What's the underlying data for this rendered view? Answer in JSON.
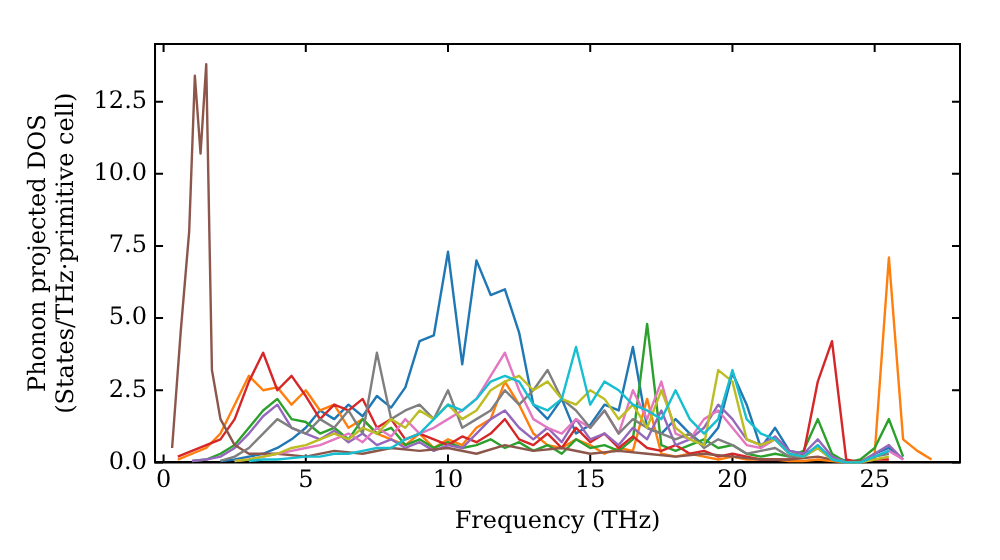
{
  "chart_data": {
    "type": "line",
    "xlabel": "Frequency (THz)",
    "ylabel": "Phonon projected DOS\n(States/THz·primitive cell)",
    "x": [
      0.5,
      1,
      1.5,
      2,
      2.5,
      3,
      3.5,
      4,
      4.5,
      5,
      5.5,
      6,
      6.5,
      7,
      7.5,
      8,
      8.5,
      9,
      9.5,
      10,
      10.5,
      11,
      11.5,
      12,
      12.5,
      13,
      13.5,
      14,
      14.5,
      15,
      15.5,
      16,
      16.5,
      17,
      17.5,
      18,
      18.5,
      19,
      19.5,
      20,
      20.5,
      21,
      21.5,
      22,
      22.5,
      23,
      23.5,
      24,
      24.5,
      25,
      25.5,
      26,
      26.5,
      27
    ],
    "xlim": [
      -0.3,
      28
    ],
    "xticks": [
      0,
      5,
      10,
      15,
      20,
      25
    ],
    "ylim": [
      0,
      14.5
    ],
    "yticks": [
      {
        "value": 0,
        "label": "0.0"
      },
      2.5,
      {
        "value": 5,
        "label": "5.0"
      },
      7.5,
      {
        "value": 10,
        "label": "10.0"
      },
      12.5
    ],
    "grid": false,
    "legend": false,
    "marker": "none",
    "line_style": "solid",
    "series": [
      {
        "color": "#1f77b4",
        "values": [
          null,
          null,
          null,
          0.05,
          0.1,
          0.2,
          0.3,
          0.5,
          0.8,
          1.2,
          1.8,
          1.5,
          2.0,
          1.6,
          2.3,
          1.9,
          2.6,
          4.2,
          4.4,
          7.3,
          3.4,
          7.0,
          5.8,
          6.0,
          4.5,
          2.0,
          1.5,
          2.2,
          1.0,
          1.3,
          2.0,
          1.8,
          4.0,
          1.2,
          1.0,
          1.5,
          1.0,
          0.6,
          1.2,
          3.1,
          2.0,
          0.5,
          1.2,
          0.4,
          0.3,
          0.5,
          0.2,
          0.05,
          0,
          0.3,
          0.5,
          0.1,
          null,
          null
        ]
      },
      {
        "color": "#ff7f0e",
        "values": [
          0.1,
          0.3,
          0.5,
          1.0,
          2.0,
          3.0,
          2.5,
          2.6,
          2.0,
          2.5,
          1.8,
          2.0,
          1.2,
          1.5,
          1.0,
          0.8,
          0.6,
          1.0,
          0.5,
          0.8,
          0.6,
          1.2,
          1.5,
          2.8,
          2.0,
          1.0,
          0.6,
          0.5,
          0.8,
          0.6,
          0.3,
          0.5,
          0.4,
          2.2,
          0.3,
          0.2,
          0.3,
          0.2,
          0.1,
          0.2,
          0.1,
          0.1,
          0.1,
          0.05,
          0.05,
          0.1,
          0.05,
          0,
          0,
          0.3,
          7.1,
          0.8,
          0.4,
          0.1
        ]
      },
      {
        "color": "#2ca02c",
        "values": [
          null,
          0.05,
          0.1,
          0.3,
          0.6,
          1.2,
          1.8,
          2.2,
          1.5,
          1.4,
          1.0,
          1.2,
          0.8,
          1.5,
          1.0,
          1.2,
          0.6,
          0.8,
          0.5,
          0.7,
          0.5,
          0.6,
          0.8,
          0.5,
          0.7,
          0.4,
          0.6,
          0.3,
          0.8,
          0.5,
          0.6,
          0.4,
          0.8,
          4.8,
          0.6,
          0.4,
          0.6,
          0.8,
          0.5,
          0.6,
          0.3,
          0.2,
          0.3,
          0.2,
          0.4,
          1.5,
          0.3,
          0,
          0.1,
          0.5,
          1.5,
          0.2,
          null,
          null
        ]
      },
      {
        "color": "#d62728",
        "values": [
          0.2,
          0.4,
          0.6,
          0.8,
          1.5,
          2.8,
          3.8,
          2.5,
          3.0,
          2.3,
          1.5,
          2.0,
          1.8,
          2.2,
          1.2,
          1.5,
          0.8,
          1.0,
          0.8,
          0.6,
          0.9,
          0.7,
          1.0,
          1.5,
          0.8,
          0.6,
          1.0,
          0.5,
          1.2,
          0.7,
          1.0,
          0.5,
          0.9,
          0.5,
          0.4,
          0.6,
          0.3,
          0.4,
          0.2,
          0.3,
          0.2,
          0.1,
          0.1,
          0.1,
          0.3,
          2.8,
          4.2,
          0.1,
          0,
          0.1,
          0.1,
          null,
          null,
          null
        ]
      },
      {
        "color": "#9467bd",
        "values": [
          null,
          0.05,
          0.1,
          0.2,
          0.5,
          1.0,
          1.6,
          2.0,
          1.2,
          1.0,
          0.8,
          1.1,
          0.7,
          1.0,
          0.6,
          0.8,
          0.5,
          0.7,
          0.4,
          0.6,
          0.5,
          1.0,
          1.5,
          1.8,
          1.2,
          0.8,
          1.2,
          0.7,
          1.5,
          0.8,
          1.0,
          0.6,
          1.2,
          0.8,
          1.8,
          0.6,
          0.8,
          1.2,
          2.0,
          1.5,
          0.8,
          0.6,
          0.9,
          0.4,
          0.3,
          0.8,
          0.2,
          0,
          0,
          0.3,
          0.6,
          0.1,
          null,
          null
        ]
      },
      {
        "color": "#8c564b",
        "x": [
          0.3,
          0.6,
          0.9,
          1.1,
          1.3,
          1.5,
          1.7,
          2.0,
          2.5,
          3,
          4,
          5,
          6,
          7,
          8,
          9,
          10,
          11,
          12,
          13,
          14,
          15,
          16,
          17,
          18,
          19,
          20,
          21,
          22,
          23,
          24,
          25
        ],
        "values": [
          0.5,
          4.5,
          8,
          13.4,
          10.7,
          13.8,
          3.2,
          1.5,
          0.6,
          0.3,
          0.3,
          0.2,
          0.4,
          0.3,
          0.5,
          0.4,
          0.5,
          0.3,
          0.6,
          0.4,
          0.5,
          0.3,
          0.4,
          0.3,
          0.2,
          0.3,
          0.2,
          0.1,
          0.1,
          0.2,
          0,
          0.1
        ]
      },
      {
        "color": "#e377c2",
        "values": [
          null,
          null,
          null,
          null,
          0.05,
          0.1,
          0.2,
          0.3,
          0.4,
          0.5,
          0.6,
          0.8,
          1.0,
          0.7,
          1.2,
          0.9,
          1.5,
          1.0,
          1.2,
          1.5,
          1.8,
          2.2,
          3.0,
          3.8,
          2.5,
          1.5,
          1.2,
          1.0,
          1.5,
          1.2,
          1.8,
          1.0,
          2.5,
          1.5,
          2.8,
          1.0,
          0.8,
          1.5,
          1.8,
          1.2,
          0.6,
          0.5,
          0.8,
          0.3,
          0.2,
          0.6,
          0.1,
          0,
          0,
          0.2,
          0.4,
          0.1,
          null,
          null
        ]
      },
      {
        "color": "#7f7f7f",
        "values": [
          null,
          null,
          null,
          0.05,
          0.2,
          0.5,
          1.0,
          1.5,
          1.2,
          1.0,
          1.5,
          1.2,
          1.8,
          1.0,
          3.8,
          1.5,
          1.8,
          2.0,
          1.5,
          2.5,
          1.2,
          1.5,
          1.8,
          2.5,
          2.0,
          2.5,
          3.2,
          2.2,
          1.8,
          1.2,
          1.8,
          1.0,
          1.5,
          1.2,
          1.0,
          0.8,
          1.0,
          0.5,
          0.8,
          0.6,
          0.3,
          0.4,
          0.5,
          0.2,
          0.2,
          0.5,
          0.1,
          0,
          0,
          0.2,
          0.3,
          null,
          null,
          null
        ]
      },
      {
        "color": "#bcbd22",
        "values": [
          null,
          null,
          null,
          null,
          0.05,
          0.1,
          0.2,
          0.3,
          0.5,
          0.6,
          0.8,
          1.0,
          0.8,
          1.2,
          1.0,
          1.5,
          1.2,
          1.8,
          1.5,
          2.0,
          1.5,
          1.8,
          2.5,
          2.8,
          3.0,
          2.5,
          2.8,
          2.2,
          2.0,
          2.5,
          2.2,
          1.5,
          2.0,
          1.2,
          2.5,
          1.2,
          0.8,
          0.6,
          3.2,
          2.8,
          0.8,
          0.6,
          0.8,
          0.3,
          0.2,
          0.5,
          0.1,
          0,
          0,
          0.1,
          0.2,
          null,
          null,
          null
        ]
      },
      {
        "color": "#17becf",
        "values": [
          null,
          null,
          null,
          null,
          null,
          0.05,
          0.1,
          0.1,
          0.15,
          0.2,
          0.2,
          0.3,
          0.3,
          0.4,
          0.5,
          0.5,
          0.8,
          1.0,
          1.5,
          2.0,
          1.8,
          2.2,
          2.8,
          3.0,
          2.8,
          2.0,
          1.8,
          2.2,
          4.0,
          2.0,
          2.8,
          2.5,
          2.0,
          1.8,
          1.5,
          2.5,
          1.5,
          1.0,
          1.5,
          3.2,
          1.5,
          1.0,
          0.8,
          0.3,
          0.2,
          0.6,
          0.1,
          0,
          0,
          0.2,
          0.4,
          null,
          null,
          null
        ]
      }
    ]
  }
}
